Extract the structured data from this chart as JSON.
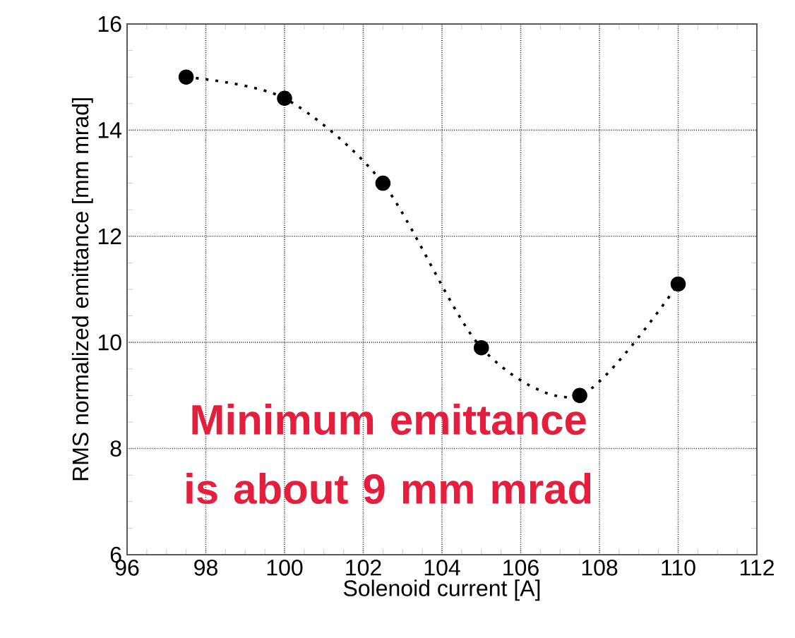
{
  "chart_data": {
    "type": "line",
    "xlabel": "Solenoid current [A]",
    "ylabel": "RMS normalized emittance [mm mrad]",
    "x": [
      97.5,
      100,
      102.5,
      105,
      107.5,
      110
    ],
    "series": [
      {
        "color": "#000000",
        "values": [
          15.0,
          14.6,
          13.0,
          9.9,
          9.0,
          11.1
        ]
      }
    ],
    "marker": "circle",
    "line_style": "dotted",
    "grid": true,
    "xlim": [
      96,
      112
    ],
    "xticks": [
      96,
      98,
      100,
      102,
      104,
      106,
      108,
      110,
      112
    ],
    "ylim": [
      6,
      16
    ],
    "yticks": [
      6,
      8,
      10,
      12,
      14,
      16
    ],
    "annotations": [
      "Minimum emittance is about 9 mm mrad"
    ]
  }
}
